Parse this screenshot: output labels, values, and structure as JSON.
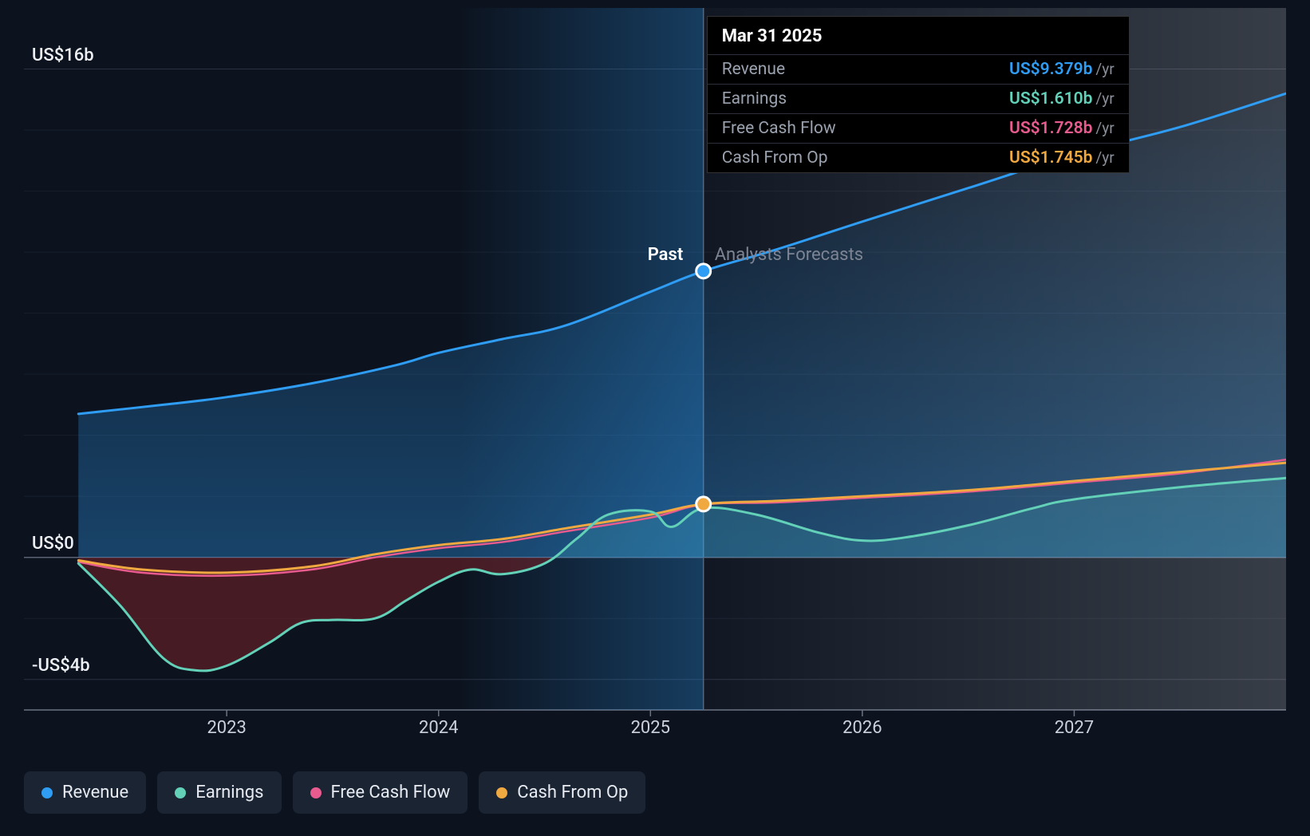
{
  "chart": {
    "type": "area-line",
    "background_color": "#0c131f",
    "grid_color": "#2a3140",
    "axis_color": "#6b7282",
    "y_axis": {
      "min": -5,
      "max": 18,
      "ticks": [
        {
          "value": 16,
          "label": "US$16b"
        },
        {
          "value": 0,
          "label": "US$0"
        },
        {
          "value": -4,
          "label": "-US$4b"
        }
      ],
      "minor_ticks": [
        14,
        12,
        10,
        8,
        6,
        4,
        2,
        -2
      ]
    },
    "x_axis": {
      "min": 2022.25,
      "max": 2028.0,
      "divider_x": 2025.25,
      "ticks": [
        {
          "value": 2023,
          "label": "2023"
        },
        {
          "value": 2024,
          "label": "2024"
        },
        {
          "value": 2025,
          "label": "2025"
        },
        {
          "value": 2026,
          "label": "2026"
        },
        {
          "value": 2027,
          "label": "2027"
        }
      ]
    },
    "divider_label_left": "Past",
    "divider_label_right": "Analysts Forecasts",
    "series": {
      "revenue": {
        "name": "Revenue",
        "color": "#2f9df4",
        "fill_top": "rgba(47,157,244,0.02)",
        "fill_bottom": "rgba(47,157,244,0.35)",
        "line_width": 3,
        "highlight_marker": {
          "x": 2025.25,
          "y": 9.379
        },
        "points": [
          [
            2022.3,
            4.7
          ],
          [
            2022.7,
            5.0
          ],
          [
            2023.0,
            5.25
          ],
          [
            2023.4,
            5.7
          ],
          [
            2023.8,
            6.3
          ],
          [
            2024.0,
            6.7
          ],
          [
            2024.3,
            7.15
          ],
          [
            2024.6,
            7.6
          ],
          [
            2025.0,
            8.7
          ],
          [
            2025.25,
            9.379
          ],
          [
            2025.6,
            10.1
          ],
          [
            2026.0,
            11.0
          ],
          [
            2026.5,
            12.1
          ],
          [
            2027.0,
            13.2
          ],
          [
            2027.5,
            14.1
          ],
          [
            2028.0,
            15.2
          ]
        ]
      },
      "cashfromop": {
        "name": "Cash From Op",
        "color": "#f0a840",
        "fill": "rgba(240,168,64,0.15)",
        "line_width": 3,
        "highlight_marker": {
          "x": 2025.25,
          "y": 1.745
        },
        "points": [
          [
            2022.3,
            -0.1
          ],
          [
            2022.6,
            -0.4
          ],
          [
            2023.0,
            -0.5
          ],
          [
            2023.4,
            -0.3
          ],
          [
            2023.7,
            0.1
          ],
          [
            2024.0,
            0.4
          ],
          [
            2024.3,
            0.6
          ],
          [
            2024.6,
            0.95
          ],
          [
            2025.0,
            1.4
          ],
          [
            2025.25,
            1.745
          ],
          [
            2025.6,
            1.85
          ],
          [
            2026.0,
            2.0
          ],
          [
            2026.5,
            2.2
          ],
          [
            2027.0,
            2.5
          ],
          [
            2027.5,
            2.8
          ],
          [
            2028.0,
            3.1
          ]
        ]
      },
      "freecashflow": {
        "name": "Free Cash Flow",
        "color": "#e85b8f",
        "fill": "rgba(232,91,143,0.2)",
        "line_width": 2.5,
        "points": [
          [
            2022.3,
            -0.15
          ],
          [
            2022.6,
            -0.5
          ],
          [
            2023.0,
            -0.6
          ],
          [
            2023.4,
            -0.4
          ],
          [
            2023.7,
            0.0
          ],
          [
            2024.0,
            0.3
          ],
          [
            2024.3,
            0.5
          ],
          [
            2024.6,
            0.85
          ],
          [
            2025.0,
            1.3
          ],
          [
            2025.25,
            1.728
          ],
          [
            2025.6,
            1.8
          ],
          [
            2026.0,
            1.95
          ],
          [
            2026.5,
            2.15
          ],
          [
            2027.0,
            2.45
          ],
          [
            2027.5,
            2.75
          ],
          [
            2028.0,
            3.2
          ]
        ]
      },
      "earnings": {
        "name": "Earnings",
        "color": "#62d1b8",
        "fill_above": "rgba(98,209,184,0.18)",
        "fill_below": "rgba(120,35,40,0.55)",
        "line_width": 3,
        "points": [
          [
            2022.3,
            -0.2
          ],
          [
            2022.5,
            -1.6
          ],
          [
            2022.7,
            -3.3
          ],
          [
            2022.85,
            -3.7
          ],
          [
            2023.0,
            -3.55
          ],
          [
            2023.2,
            -2.8
          ],
          [
            2023.35,
            -2.15
          ],
          [
            2023.5,
            -2.05
          ],
          [
            2023.7,
            -2.0
          ],
          [
            2023.85,
            -1.4
          ],
          [
            2024.0,
            -0.8
          ],
          [
            2024.15,
            -0.4
          ],
          [
            2024.3,
            -0.55
          ],
          [
            2024.5,
            -0.2
          ],
          [
            2024.65,
            0.6
          ],
          [
            2024.8,
            1.4
          ],
          [
            2025.0,
            1.5
          ],
          [
            2025.1,
            1.0
          ],
          [
            2025.25,
            1.61
          ],
          [
            2025.5,
            1.4
          ],
          [
            2025.8,
            0.8
          ],
          [
            2026.0,
            0.55
          ],
          [
            2026.2,
            0.65
          ],
          [
            2026.5,
            1.05
          ],
          [
            2026.8,
            1.6
          ],
          [
            2027.0,
            1.9
          ],
          [
            2027.5,
            2.3
          ],
          [
            2028.0,
            2.6
          ]
        ]
      }
    },
    "highlight_glow_x": 2025.25,
    "glow_start_x": 2024.1
  },
  "tooltip": {
    "date": "Mar 31 2025",
    "unit": "/yr",
    "rows": [
      {
        "label": "Revenue",
        "value": "US$9.379b",
        "color": "#2f9df4"
      },
      {
        "label": "Earnings",
        "value": "US$1.610b",
        "color": "#62d1b8"
      },
      {
        "label": "Free Cash Flow",
        "value": "US$1.728b",
        "color": "#e85b8f"
      },
      {
        "label": "Cash From Op",
        "value": "US$1.745b",
        "color": "#f0a840"
      }
    ]
  },
  "legend": [
    {
      "label": "Revenue",
      "color": "#2f9df4"
    },
    {
      "label": "Earnings",
      "color": "#62d1b8"
    },
    {
      "label": "Free Cash Flow",
      "color": "#e85b8f"
    },
    {
      "label": "Cash From Op",
      "color": "#f0a840"
    }
  ]
}
